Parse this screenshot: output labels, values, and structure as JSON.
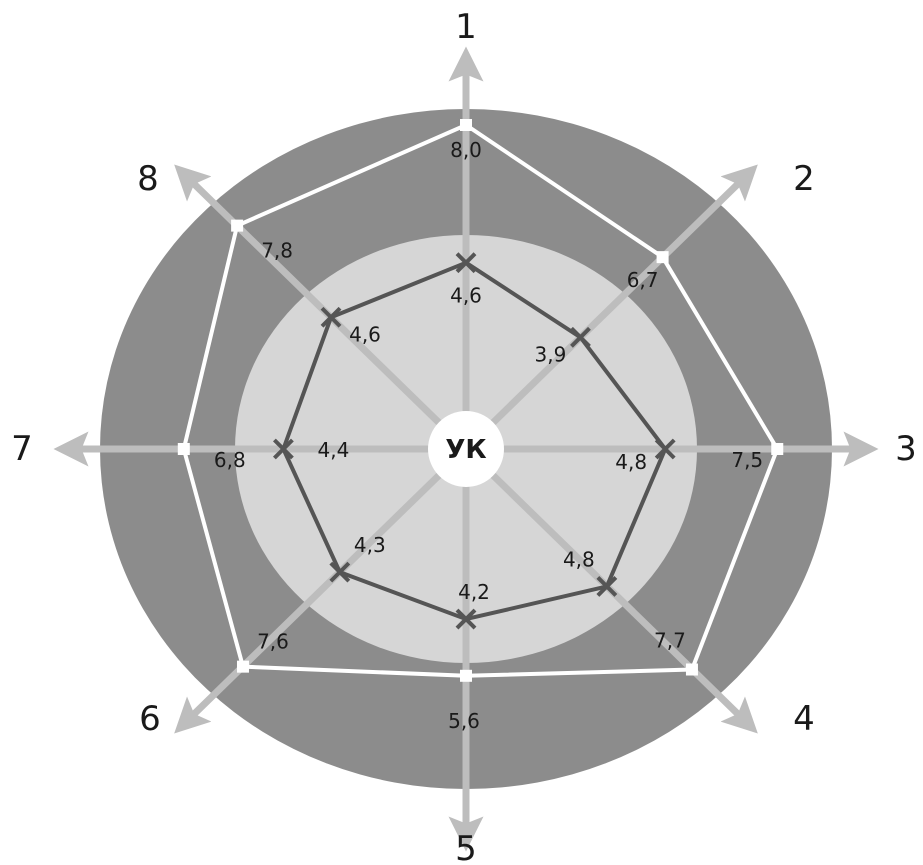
{
  "chart_data": {
    "type": "radar",
    "title": "",
    "center_label": "УК",
    "axes": [
      "1",
      "2",
      "3",
      "4",
      "5",
      "6",
      "7",
      "8"
    ],
    "rmax": 10,
    "series": [
      {
        "values": [
          8.0,
          6.7,
          7.5,
          7.7,
          5.6,
          7.6,
          6.8,
          7.8
        ],
        "labels": [
          "8,0",
          "6,7",
          "7,5",
          "7,7",
          "5,6",
          "7,6",
          "6,8",
          "7,8"
        ],
        "line_color": "#ffffff",
        "marker": "square"
      },
      {
        "values": [
          4.6,
          3.9,
          4.8,
          4.8,
          4.2,
          4.3,
          4.4,
          4.6
        ],
        "labels": [
          "4,6",
          "3,9",
          "4,8",
          "4,8",
          "4,2",
          "4,3",
          "4,4",
          "4,6"
        ],
        "line_color": "#555555",
        "marker": "x"
      }
    ],
    "colors": {
      "outer_ring": "#8c8c8c",
      "inner_disc": "#d6d6d6",
      "axis_lines": "#bdbdbd",
      "center_disc": "#ffffff"
    }
  }
}
